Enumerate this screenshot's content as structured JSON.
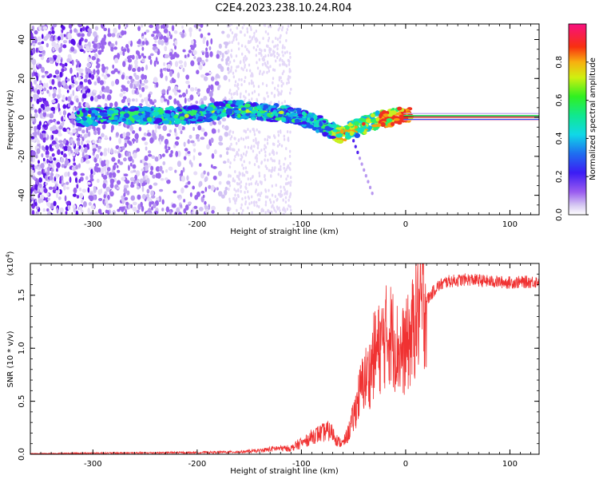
{
  "title": "C2E4.2023.238.10.24.R04",
  "colors": {
    "snr_line": "#f03232",
    "trace_line": "#222222"
  },
  "chart_data": [
    {
      "type": "heatmap",
      "name": "spectrogram",
      "xlabel": "Height of straight line (km)",
      "ylabel": "Frequency (Hz)",
      "xlim": [
        -360,
        128
      ],
      "ylim": [
        -50,
        48
      ],
      "xticks": [
        -300,
        -200,
        -100,
        0,
        100
      ],
      "yticks": [
        -40,
        -20,
        0,
        20,
        40
      ],
      "colorbar": {
        "label": "Normalized spectral amplitude",
        "range": [
          0,
          1
        ],
        "ticks": [
          "0.0",
          "0.2",
          "0.4",
          "0.6",
          "0.8"
        ],
        "colormap": "purple-blue-cyan-green-yellow-red-magenta"
      },
      "ridge": {
        "x": [
          -310,
          -280,
          -250,
          -220,
          -190,
          -175,
          -160,
          -140,
          -120,
          -100,
          -90,
          -80,
          -70,
          -62,
          -55,
          -45,
          -35,
          -25,
          -15,
          -5,
          0,
          128
        ],
        "y": [
          0,
          1,
          1,
          1,
          2,
          4,
          4,
          3,
          2,
          0,
          -2,
          -4,
          -7,
          -9,
          -7,
          -5,
          -3,
          -1,
          0,
          1,
          1,
          0
        ]
      }
    },
    {
      "type": "line",
      "name": "snr",
      "xlabel": "Height of straight line (km)",
      "ylabel": "SNR (10 * v/v)",
      "scale_label": "(x10",
      "scale_exp": "4",
      "scale_close": ")",
      "xlim": [
        -360,
        128
      ],
      "ylim": [
        0,
        1.8
      ],
      "xticks": [
        -300,
        -200,
        -100,
        0,
        100
      ],
      "yticks": [
        "0.0",
        "0.5",
        "1.0",
        "1.5"
      ],
      "ytick_values": [
        0,
        0.5,
        1.0,
        1.5
      ],
      "envelope": {
        "x": [
          -360,
          -300,
          -250,
          -200,
          -160,
          -140,
          -125,
          -110,
          -100,
          -95,
          -88,
          -80,
          -75,
          -70,
          -65,
          -60,
          -55,
          -50,
          -45,
          -40,
          -35,
          -30,
          -25,
          -20,
          -15,
          -10,
          -5,
          0,
          5,
          10,
          20,
          30,
          40,
          60,
          80,
          100,
          128
        ],
        "y": [
          0.005,
          0.01,
          0.012,
          0.015,
          0.02,
          0.03,
          0.05,
          0.05,
          0.1,
          0.13,
          0.18,
          0.2,
          0.22,
          0.2,
          0.12,
          0.1,
          0.2,
          0.35,
          0.55,
          0.7,
          0.75,
          0.95,
          1.0,
          1.1,
          1.15,
          1.05,
          0.95,
          1.0,
          1.1,
          1.3,
          1.45,
          1.58,
          1.63,
          1.65,
          1.63,
          1.62,
          1.63
        ]
      }
    }
  ]
}
